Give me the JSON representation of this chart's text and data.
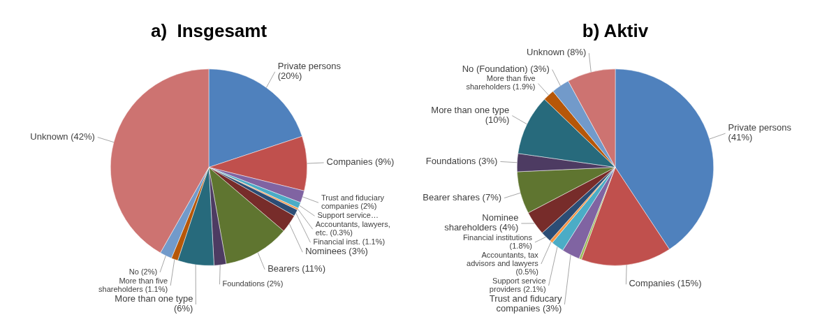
{
  "chart_data": [
    {
      "type": "pie",
      "title": "a)  Insgesamt",
      "categories": [
        "Private persons",
        "Companies",
        "Trust and fiduciary companies",
        "Support service…",
        "Accountants, lawyers, etc.",
        "Financial inst.",
        "Nominees",
        "Bearers",
        "Foundations",
        "More than one type",
        "More than five shareholders",
        "No",
        "Unknown"
      ],
      "values": [
        20,
        9,
        2,
        1,
        0.3,
        1.1,
        3,
        11,
        2,
        6,
        1.1,
        2,
        42
      ],
      "value_labels": [
        "(20%)",
        "(9%)",
        "(2%)",
        null,
        "(0.3%)",
        "(1.1%)",
        "(3%)",
        "(11%)",
        "(2%)",
        "(6%)",
        "(1.1%)",
        "(2%)",
        "(42%)"
      ],
      "colors": [
        "#4f81bd",
        "#c0504d",
        "#8064a2",
        "#4bacc6",
        "#f79646",
        "#2c4d75",
        "#772c2a",
        "#5f7530",
        "#4d3b62",
        "#276a7c",
        "#b65708",
        "#729aca",
        "#cd7371"
      ],
      "legend": false
    },
    {
      "type": "pie",
      "title": "b) Aktiv",
      "categories": [
        "Private persons",
        "Companies",
        null,
        "Trust and fiducary companies",
        "Support service providers",
        "Accountants, tax advisors and lawyers",
        "Financial institutions",
        "Nominee shareholders",
        "Bearer shares",
        "Foundations",
        "More than one type",
        "More than five shareholders",
        "No (Foundation)",
        "Unknown"
      ],
      "values": [
        41,
        15,
        0.4,
        3,
        2.1,
        0.5,
        1.8,
        4,
        7,
        3,
        10,
        1.9,
        3,
        8
      ],
      "value_labels": [
        "(41%)",
        "(15%)",
        null,
        "(3%)",
        "(2.1%)",
        "(0.5%)",
        "(1.8%)",
        "(4%)",
        "(7%)",
        "(3%)",
        "(10%)",
        "(1.9%)",
        "(3%)",
        "(8%)"
      ],
      "colors": [
        "#4f81bd",
        "#c0504d",
        "#9bbb59",
        "#8064a2",
        "#4bacc6",
        "#f79646",
        "#2c4d75",
        "#772c2a",
        "#5f7530",
        "#4d3b62",
        "#276a7c",
        "#b65708",
        "#729aca",
        "#cd7371"
      ],
      "legend": false
    }
  ]
}
